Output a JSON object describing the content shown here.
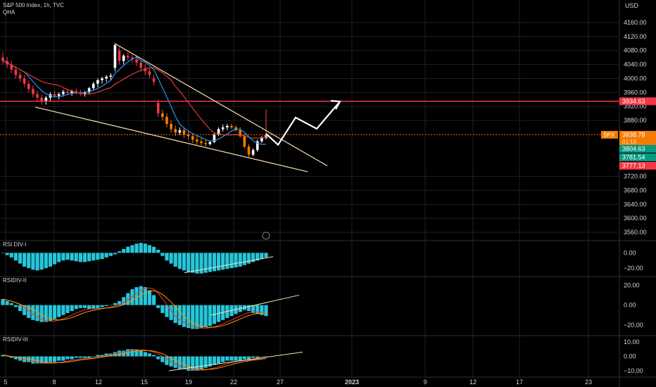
{
  "header": {
    "symbol_line": "S&P 500 Index, 1h, TVC",
    "indicator": "QHA"
  },
  "currency": "USD",
  "badges": [
    {
      "value": "3934.63",
      "color": "#f23645",
      "price": 3934.63
    },
    {
      "value": "3838.78",
      "color": "#f57c00",
      "price": 3838.78,
      "sub": "01:19",
      "tag": "SPX"
    },
    {
      "value": "3804.63",
      "color": "#089981",
      "price": 3804.63
    },
    {
      "value": "3781.54",
      "color": "#089981",
      "price": 3781.54
    },
    {
      "value": "3777.13",
      "color": "#f23645",
      "price": 3777.13
    }
  ],
  "chart_data": [
    {
      "type": "candlestick",
      "title": "S&P 500 Index, 1h, TVC",
      "y_axis": {
        "ticks": [
          "4160.00",
          "4120.00",
          "4080.00",
          "4040.00",
          "4000.00",
          "3960.00",
          "3920.00",
          "3880.00",
          "3720.00",
          "3680.00",
          "3640.00",
          "3600.00",
          "3560.00"
        ],
        "range": [
          3540,
          4180
        ]
      },
      "x_axis": {
        "ticks": [
          "5",
          "8",
          "12",
          "15",
          "19",
          "22",
          "27",
          "2023",
          "9",
          "12",
          "17",
          "23"
        ]
      },
      "horizontal_line": 3934.63,
      "last_price": 3838.78,
      "ohlc": [
        [
          4060,
          4075,
          4040,
          4050
        ],
        [
          4050,
          4062,
          4030,
          4040
        ],
        [
          4040,
          4050,
          4015,
          4025
        ],
        [
          4025,
          4035,
          4000,
          4010
        ],
        [
          4010,
          4020,
          3990,
          4000
        ],
        [
          4000,
          4010,
          3975,
          3985
        ],
        [
          3985,
          3995,
          3960,
          3970
        ],
        [
          3970,
          3980,
          3945,
          3955
        ],
        [
          3955,
          3965,
          3935,
          3945
        ],
        [
          3945,
          3955,
          3925,
          3935
        ],
        [
          3935,
          3950,
          3925,
          3945
        ],
        [
          3945,
          3960,
          3935,
          3955
        ],
        [
          3955,
          3965,
          3945,
          3950
        ],
        [
          3950,
          3960,
          3940,
          3955
        ],
        [
          3955,
          3968,
          3948,
          3962
        ],
        [
          3962,
          3970,
          3952,
          3958
        ],
        [
          3958,
          3968,
          3950,
          3964
        ],
        [
          3964,
          3972,
          3955,
          3960
        ],
        [
          3960,
          3968,
          3950,
          3956
        ],
        [
          3956,
          3964,
          3948,
          3960
        ],
        [
          3960,
          3975,
          3955,
          3972
        ],
        [
          3972,
          3990,
          3965,
          3985
        ],
        [
          3985,
          4000,
          3975,
          3995
        ],
        [
          3995,
          4005,
          3985,
          4000
        ],
        [
          4000,
          4010,
          3990,
          4005
        ],
        [
          4005,
          4015,
          3995,
          4008
        ],
        [
          4030,
          4100,
          4020,
          4095
        ],
        [
          4080,
          4090,
          4040,
          4050
        ],
        [
          4050,
          4070,
          4040,
          4065
        ],
        [
          4065,
          4075,
          4050,
          4060
        ],
        [
          4060,
          4068,
          4045,
          4055
        ],
        [
          4055,
          4062,
          4035,
          4045
        ],
        [
          4045,
          4050,
          4020,
          4030
        ],
        [
          4030,
          4040,
          4010,
          4020
        ],
        [
          4020,
          4030,
          4000,
          4010
        ],
        [
          4000,
          4010,
          3980,
          3990
        ],
        [
          3930,
          3940,
          3890,
          3900
        ],
        [
          3900,
          3910,
          3880,
          3890
        ],
        [
          3890,
          3900,
          3860,
          3870
        ],
        [
          3870,
          3880,
          3845,
          3855
        ],
        [
          3855,
          3865,
          3835,
          3845
        ],
        [
          3845,
          3860,
          3838,
          3852
        ],
        [
          3852,
          3858,
          3830,
          3840
        ],
        [
          3840,
          3850,
          3825,
          3835
        ],
        [
          3835,
          3842,
          3815,
          3825
        ],
        [
          3825,
          3835,
          3810,
          3820
        ],
        [
          3820,
          3830,
          3808,
          3815
        ],
        [
          3815,
          3825,
          3805,
          3812
        ],
        [
          3812,
          3822,
          3808,
          3818
        ],
        [
          3818,
          3845,
          3815,
          3840
        ],
        [
          3840,
          3860,
          3835,
          3855
        ],
        [
          3855,
          3868,
          3848,
          3860
        ],
        [
          3860,
          3870,
          3852,
          3864
        ],
        [
          3864,
          3870,
          3855,
          3860
        ],
        [
          3860,
          3866,
          3848,
          3852
        ],
        [
          3852,
          3860,
          3830,
          3835
        ],
        [
          3835,
          3842,
          3800,
          3805
        ],
        [
          3805,
          3812,
          3775,
          3782
        ],
        [
          3782,
          3800,
          3777,
          3795
        ],
        [
          3795,
          3825,
          3790,
          3820
        ],
        [
          3820,
          3835,
          3815,
          3830
        ],
        [
          3830,
          3845,
          3825,
          3838
        ]
      ],
      "indicators": [
        "QHA",
        "moving averages"
      ]
    },
    {
      "type": "histogram",
      "title": "RSI DIV-I",
      "y_axis": {
        "ticks": [
          "0.00",
          "−20.00"
        ],
        "range": [
          -30,
          15
        ]
      },
      "values": [
        0,
        -3,
        -6,
        -10,
        -14,
        -18,
        -20,
        -22,
        -23,
        -22,
        -20,
        -18,
        -15,
        -12,
        -10,
        -9,
        -10,
        -11,
        -12,
        -12,
        -11,
        -10,
        -9,
        -8,
        -6,
        -4,
        -2,
        2,
        5,
        8,
        10,
        12,
        13,
        12,
        10,
        8,
        4,
        -4,
        -10,
        -14,
        -18,
        -21,
        -23,
        -25,
        -26,
        -27,
        -27,
        -26,
        -25,
        -24,
        -23,
        -22,
        -21,
        -20,
        -19,
        -18,
        -16,
        -14,
        -12,
        -10,
        -8,
        -6
      ]
    },
    {
      "type": "histogram",
      "title": "RSIDIV-II",
      "y_axis": {
        "ticks": [
          "20.00",
          "0.00",
          "−20.00"
        ],
        "range": [
          -30,
          28
        ]
      },
      "values": [
        6,
        4,
        2,
        -2,
        -6,
        -10,
        -13,
        -15,
        -16,
        -17,
        -17,
        -16,
        -14,
        -12,
        -10,
        -8,
        -6,
        -4,
        -3,
        -3,
        -4,
        -4,
        -3,
        -2,
        -1,
        0,
        2,
        4,
        8,
        12,
        16,
        18,
        19,
        18,
        15,
        10,
        -3,
        -8,
        -12,
        -15,
        -18,
        -20,
        -22,
        -23,
        -24,
        -24,
        -23,
        -22,
        -21,
        -19,
        -17,
        -15,
        -13,
        -11,
        -9,
        -7,
        -5,
        -6,
        -8,
        -9,
        -10,
        -11
      ]
    },
    {
      "type": "histogram",
      "title": "RSIDIV-III",
      "y_axis": {
        "ticks": [
          "10.00",
          "0.00",
          "−10.00"
        ],
        "range": [
          -14,
          14
        ]
      },
      "values": [
        1,
        0,
        -1,
        -2,
        -3,
        -4,
        -4,
        -5,
        -5,
        -5,
        -5,
        -4,
        -4,
        -3,
        -3,
        -2,
        -2,
        -1,
        -1,
        -1,
        -1,
        0,
        1,
        1,
        2,
        2,
        3,
        4,
        4,
        5,
        5,
        5,
        4,
        3,
        2,
        1,
        -2,
        -4,
        -6,
        -7,
        -8,
        -9,
        -9,
        -10,
        -10,
        -10,
        -9,
        -8,
        -7,
        -6,
        -5,
        -4,
        -3,
        -3,
        -3,
        -3,
        -2,
        -2,
        -1,
        -1,
        0,
        0
      ]
    }
  ]
}
